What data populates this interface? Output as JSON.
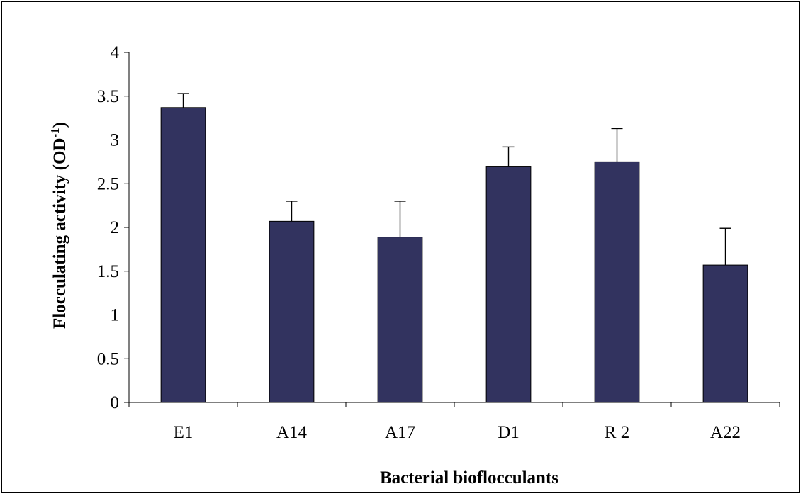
{
  "chart_data": {
    "type": "bar",
    "categories": [
      "E1",
      "A14",
      "A17",
      "D1",
      "R 2",
      "A22"
    ],
    "values": [
      3.37,
      2.07,
      1.89,
      2.7,
      2.75,
      1.57
    ],
    "error_upper": [
      3.53,
      2.3,
      2.3,
      2.92,
      3.13,
      1.99
    ],
    "ylim": [
      0,
      4
    ],
    "yticks": [
      "0",
      "0.5",
      "1",
      "1.5",
      "2",
      "2.5",
      "3",
      "3.5",
      "4"
    ],
    "xlabel": "Bacterial bioflocculants",
    "ylabel_main": "Flocculating activity (OD",
    "ylabel_sup": "-1",
    "ylabel_close": ")",
    "bar_color": "#32335f",
    "grid": false
  }
}
